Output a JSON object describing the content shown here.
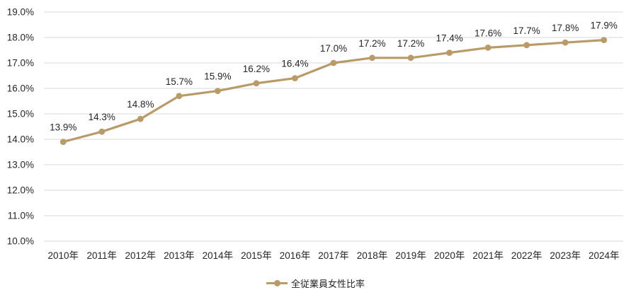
{
  "chart_data": {
    "type": "line",
    "title": "",
    "xlabel": "",
    "ylabel": "",
    "categories": [
      "2010年",
      "2011年",
      "2012年",
      "2013年",
      "2014年",
      "2015年",
      "2016年",
      "2017年",
      "2018年",
      "2019年",
      "2020年",
      "2021年",
      "2022年",
      "2023年",
      "2024年"
    ],
    "series": [
      {
        "name": "全従業員女性比率",
        "values": [
          13.9,
          14.3,
          14.8,
          15.7,
          15.9,
          16.2,
          16.4,
          17.0,
          17.2,
          17.2,
          17.4,
          17.6,
          17.7,
          17.8,
          17.9
        ],
        "color": "#B89B69"
      }
    ],
    "data_labels": [
      "13.9%",
      "14.3%",
      "14.8%",
      "15.7%",
      "15.9%",
      "16.2%",
      "16.4%",
      "17.0%",
      "17.2%",
      "17.2%",
      "17.4%",
      "17.6%",
      "17.7%",
      "17.8%",
      "17.9%"
    ],
    "ylim": [
      10.0,
      19.0
    ],
    "ytick_step": 1.0,
    "ytick_labels": [
      "10.0%",
      "11.0%",
      "12.0%",
      "13.0%",
      "14.0%",
      "15.0%",
      "16.0%",
      "17.0%",
      "18.0%",
      "19.0%"
    ],
    "grid": true,
    "legend_position": "bottom",
    "colors": {
      "grid": "#D9D9D9",
      "text": "#262626",
      "background": "#FFFFFF"
    }
  },
  "legend": {
    "items": [
      {
        "label": "全従業員女性比率",
        "color": "#B89B69"
      }
    ]
  }
}
